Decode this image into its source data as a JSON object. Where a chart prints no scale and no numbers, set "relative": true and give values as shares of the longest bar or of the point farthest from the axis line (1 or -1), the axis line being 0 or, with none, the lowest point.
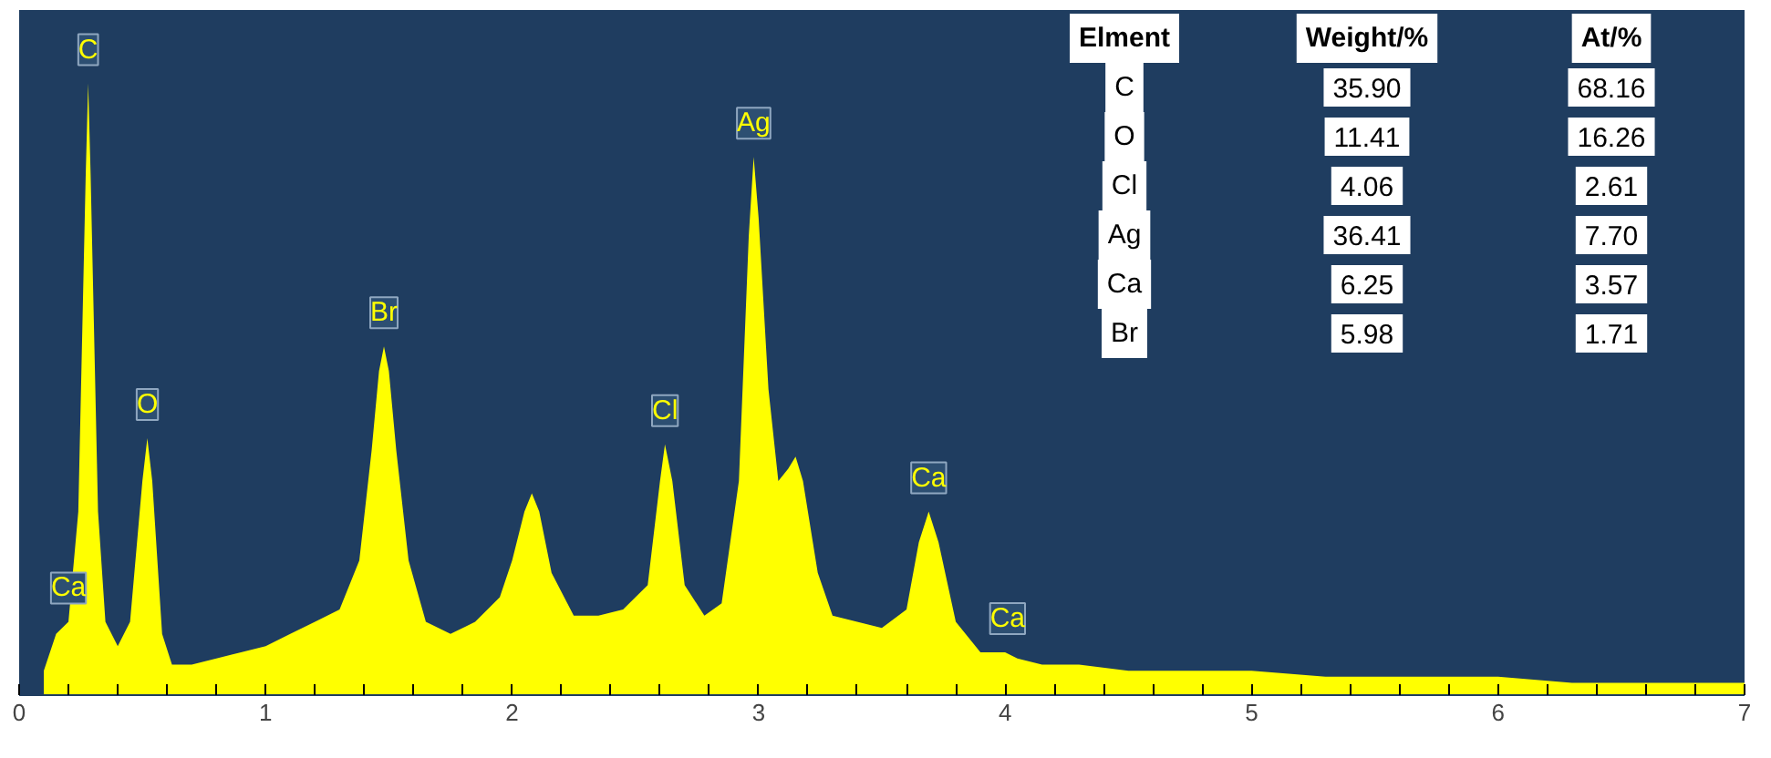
{
  "chart_data": {
    "type": "area",
    "relative": true,
    "x": [
      0.1,
      0.15,
      0.2,
      0.24,
      0.27,
      0.28,
      0.29,
      0.32,
      0.35,
      0.4,
      0.45,
      0.5,
      0.52,
      0.54,
      0.58,
      0.62,
      0.7,
      0.8,
      0.9,
      1.0,
      1.1,
      1.2,
      1.3,
      1.38,
      1.43,
      1.46,
      1.48,
      1.5,
      1.53,
      1.58,
      1.65,
      1.75,
      1.85,
      1.95,
      2.0,
      2.05,
      2.08,
      2.11,
      2.16,
      2.25,
      2.35,
      2.45,
      2.55,
      2.6,
      2.62,
      2.65,
      2.7,
      2.78,
      2.85,
      2.92,
      2.96,
      2.98,
      3.0,
      3.04,
      3.08,
      3.12,
      3.15,
      3.18,
      3.24,
      3.3,
      3.4,
      3.5,
      3.6,
      3.65,
      3.69,
      3.73,
      3.8,
      3.9,
      4.0,
      4.05,
      4.15,
      4.3,
      4.5,
      4.8,
      5.0,
      5.3,
      5.6,
      6.0,
      6.3,
      6.6,
      7.0
    ],
    "series": [
      {
        "color": "#ffff00",
        "values": [
          0.04,
          0.1,
          0.12,
          0.3,
          0.85,
          1.0,
          0.85,
          0.3,
          0.12,
          0.08,
          0.12,
          0.35,
          0.42,
          0.35,
          0.1,
          0.05,
          0.05,
          0.06,
          0.07,
          0.08,
          0.1,
          0.12,
          0.14,
          0.22,
          0.4,
          0.53,
          0.57,
          0.53,
          0.4,
          0.22,
          0.12,
          0.1,
          0.12,
          0.16,
          0.22,
          0.3,
          0.33,
          0.3,
          0.2,
          0.13,
          0.13,
          0.14,
          0.18,
          0.35,
          0.41,
          0.35,
          0.18,
          0.13,
          0.15,
          0.35,
          0.75,
          0.88,
          0.78,
          0.5,
          0.35,
          0.37,
          0.39,
          0.35,
          0.2,
          0.13,
          0.12,
          0.11,
          0.14,
          0.25,
          0.3,
          0.25,
          0.12,
          0.07,
          0.07,
          0.06,
          0.05,
          0.05,
          0.04,
          0.04,
          0.04,
          0.03,
          0.03,
          0.03,
          0.02,
          0.02,
          0.02
        ]
      }
    ],
    "xlim": [
      0,
      7
    ],
    "xticks": [
      0,
      {
        "value": 0.2,
        "label": null
      },
      {
        "value": 0.4,
        "label": null
      },
      {
        "value": 0.6,
        "label": null
      },
      {
        "value": 0.8,
        "label": null
      },
      1,
      {
        "value": 1.2,
        "label": null
      },
      {
        "value": 1.4,
        "label": null
      },
      {
        "value": 1.6,
        "label": null
      },
      {
        "value": 1.8,
        "label": null
      },
      2,
      {
        "value": 2.2,
        "label": null
      },
      {
        "value": 2.4,
        "label": null
      },
      {
        "value": 2.6,
        "label": null
      },
      {
        "value": 2.8,
        "label": null
      },
      3,
      {
        "value": 3.2,
        "label": null
      },
      {
        "value": 3.4,
        "label": null
      },
      {
        "value": 3.6,
        "label": null
      },
      {
        "value": 3.8,
        "label": null
      },
      4,
      {
        "value": 4.2,
        "label": null
      },
      {
        "value": 4.4,
        "label": null
      },
      {
        "value": 4.6,
        "label": null
      },
      {
        "value": 4.8,
        "label": null
      },
      5,
      {
        "value": 5.2,
        "label": null
      },
      {
        "value": 5.4,
        "label": null
      },
      {
        "value": 5.6,
        "label": null
      },
      {
        "value": 5.8,
        "label": null
      },
      6,
      {
        "value": 6.2,
        "label": null
      },
      {
        "value": 6.4,
        "label": null
      },
      {
        "value": 6.6,
        "label": null
      },
      {
        "value": 6.8,
        "label": null
      },
      7
    ],
    "grid": false,
    "annotations": [
      {
        "text": "C",
        "x": 0.28,
        "y": 1.0
      },
      {
        "text": "Ca",
        "x": 0.2,
        "y": 0.12
      },
      {
        "text": "O",
        "x": 0.52,
        "y": 0.42
      },
      {
        "text": "Br",
        "x": 1.48,
        "y": 0.57
      },
      {
        "text": "Cl",
        "x": 2.62,
        "y": 0.41
      },
      {
        "text": "Ag",
        "x": 2.98,
        "y": 0.88
      },
      {
        "text": "Ca",
        "x": 3.69,
        "y": 0.3
      },
      {
        "text": "Ca",
        "x": 4.01,
        "y": 0.07
      },
      "Elment",
      "Weight/%",
      "At/%",
      "C",
      "35.90",
      "68.16",
      "O",
      "11.41",
      "16.26",
      "Cl",
      "4.06",
      "2.61",
      "Ag",
      "36.41",
      "7.70",
      "Ca",
      "6.25",
      "3.57",
      "Br",
      "5.98",
      "1.71"
    ]
  }
}
